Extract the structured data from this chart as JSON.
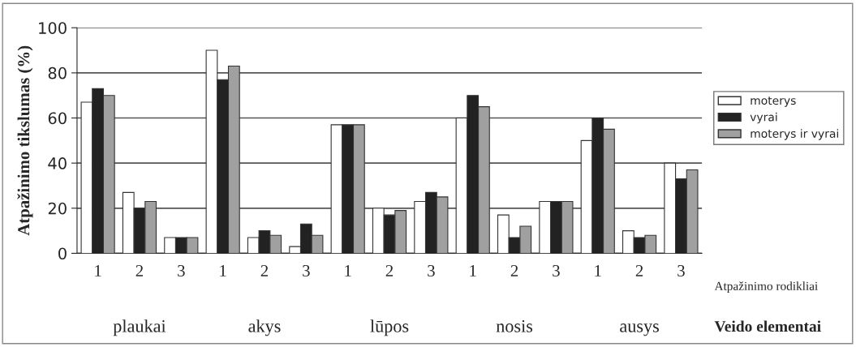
{
  "chart_data": {
    "type": "bar",
    "ylabel": "Atpažinimo tikslumas (%)",
    "categories": [
      "1",
      "2",
      "3",
      "1",
      "2",
      "3",
      "1",
      "2",
      "3",
      "1",
      "2",
      "3",
      "1",
      "2",
      "3"
    ],
    "series": [
      {
        "name": "moterys",
        "color": "#ffffff",
        "values": [
          67,
          27,
          7,
          90,
          7,
          3,
          57,
          20,
          23,
          60,
          17,
          23,
          50,
          10,
          40
        ]
      },
      {
        "name": "vyrai",
        "color": "#222222",
        "values": [
          73,
          20,
          7,
          77,
          10,
          13,
          57,
          17,
          27,
          70,
          7,
          23,
          60,
          7,
          33
        ]
      },
      {
        "name": "moterys ir vyrai",
        "color": "#a0a0a0",
        "values": [
          70,
          23,
          7,
          83,
          8,
          8,
          57,
          19,
          25,
          65,
          12,
          23,
          55,
          8,
          37
        ]
      }
    ],
    "ylim": [
      0,
      100
    ],
    "yticks": [
      0,
      20,
      40,
      60,
      80,
      100
    ],
    "grid": "y",
    "legend": "right",
    "annotations": [
      "plaukai",
      "akys",
      "lūpos",
      "nosis",
      "ausys",
      "Atpažinimo rodikliai",
      "Veido elementai"
    ]
  }
}
